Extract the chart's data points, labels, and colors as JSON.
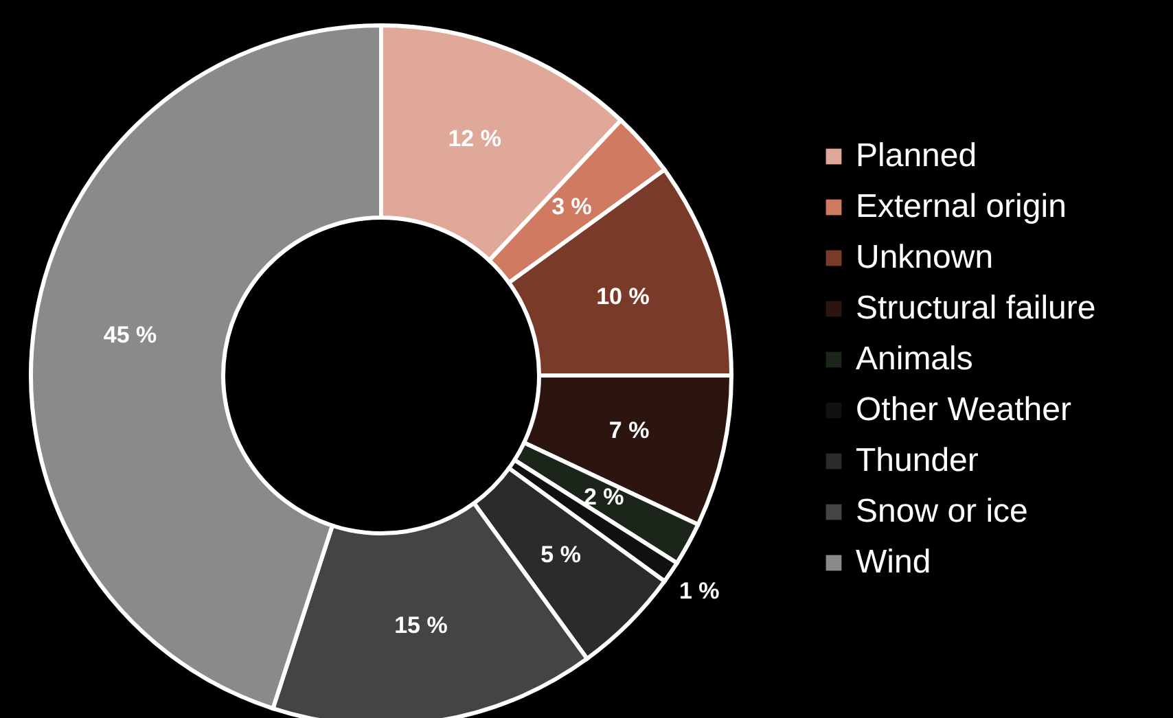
{
  "chart_data": {
    "type": "donut",
    "categories": [
      "Planned",
      "External origin",
      "Unknown",
      "Structural failure",
      "Animals",
      "Other Weather",
      "Thunder",
      "Snow or ice",
      "Wind"
    ],
    "values": [
      12,
      3,
      10,
      7,
      2,
      1,
      5,
      15,
      45
    ],
    "value_labels": [
      "12 %",
      "3 %",
      "10 %",
      "7 %",
      "2 %",
      "1 %",
      "5 %",
      "15 %",
      "45 %"
    ],
    "colors": [
      "#e0a898",
      "#d07a62",
      "#7a3a2a",
      "#2c150f",
      "#1c251a",
      "#111111",
      "#2b2b2b",
      "#444444",
      "#8a8a8a"
    ],
    "legend": "right"
  }
}
